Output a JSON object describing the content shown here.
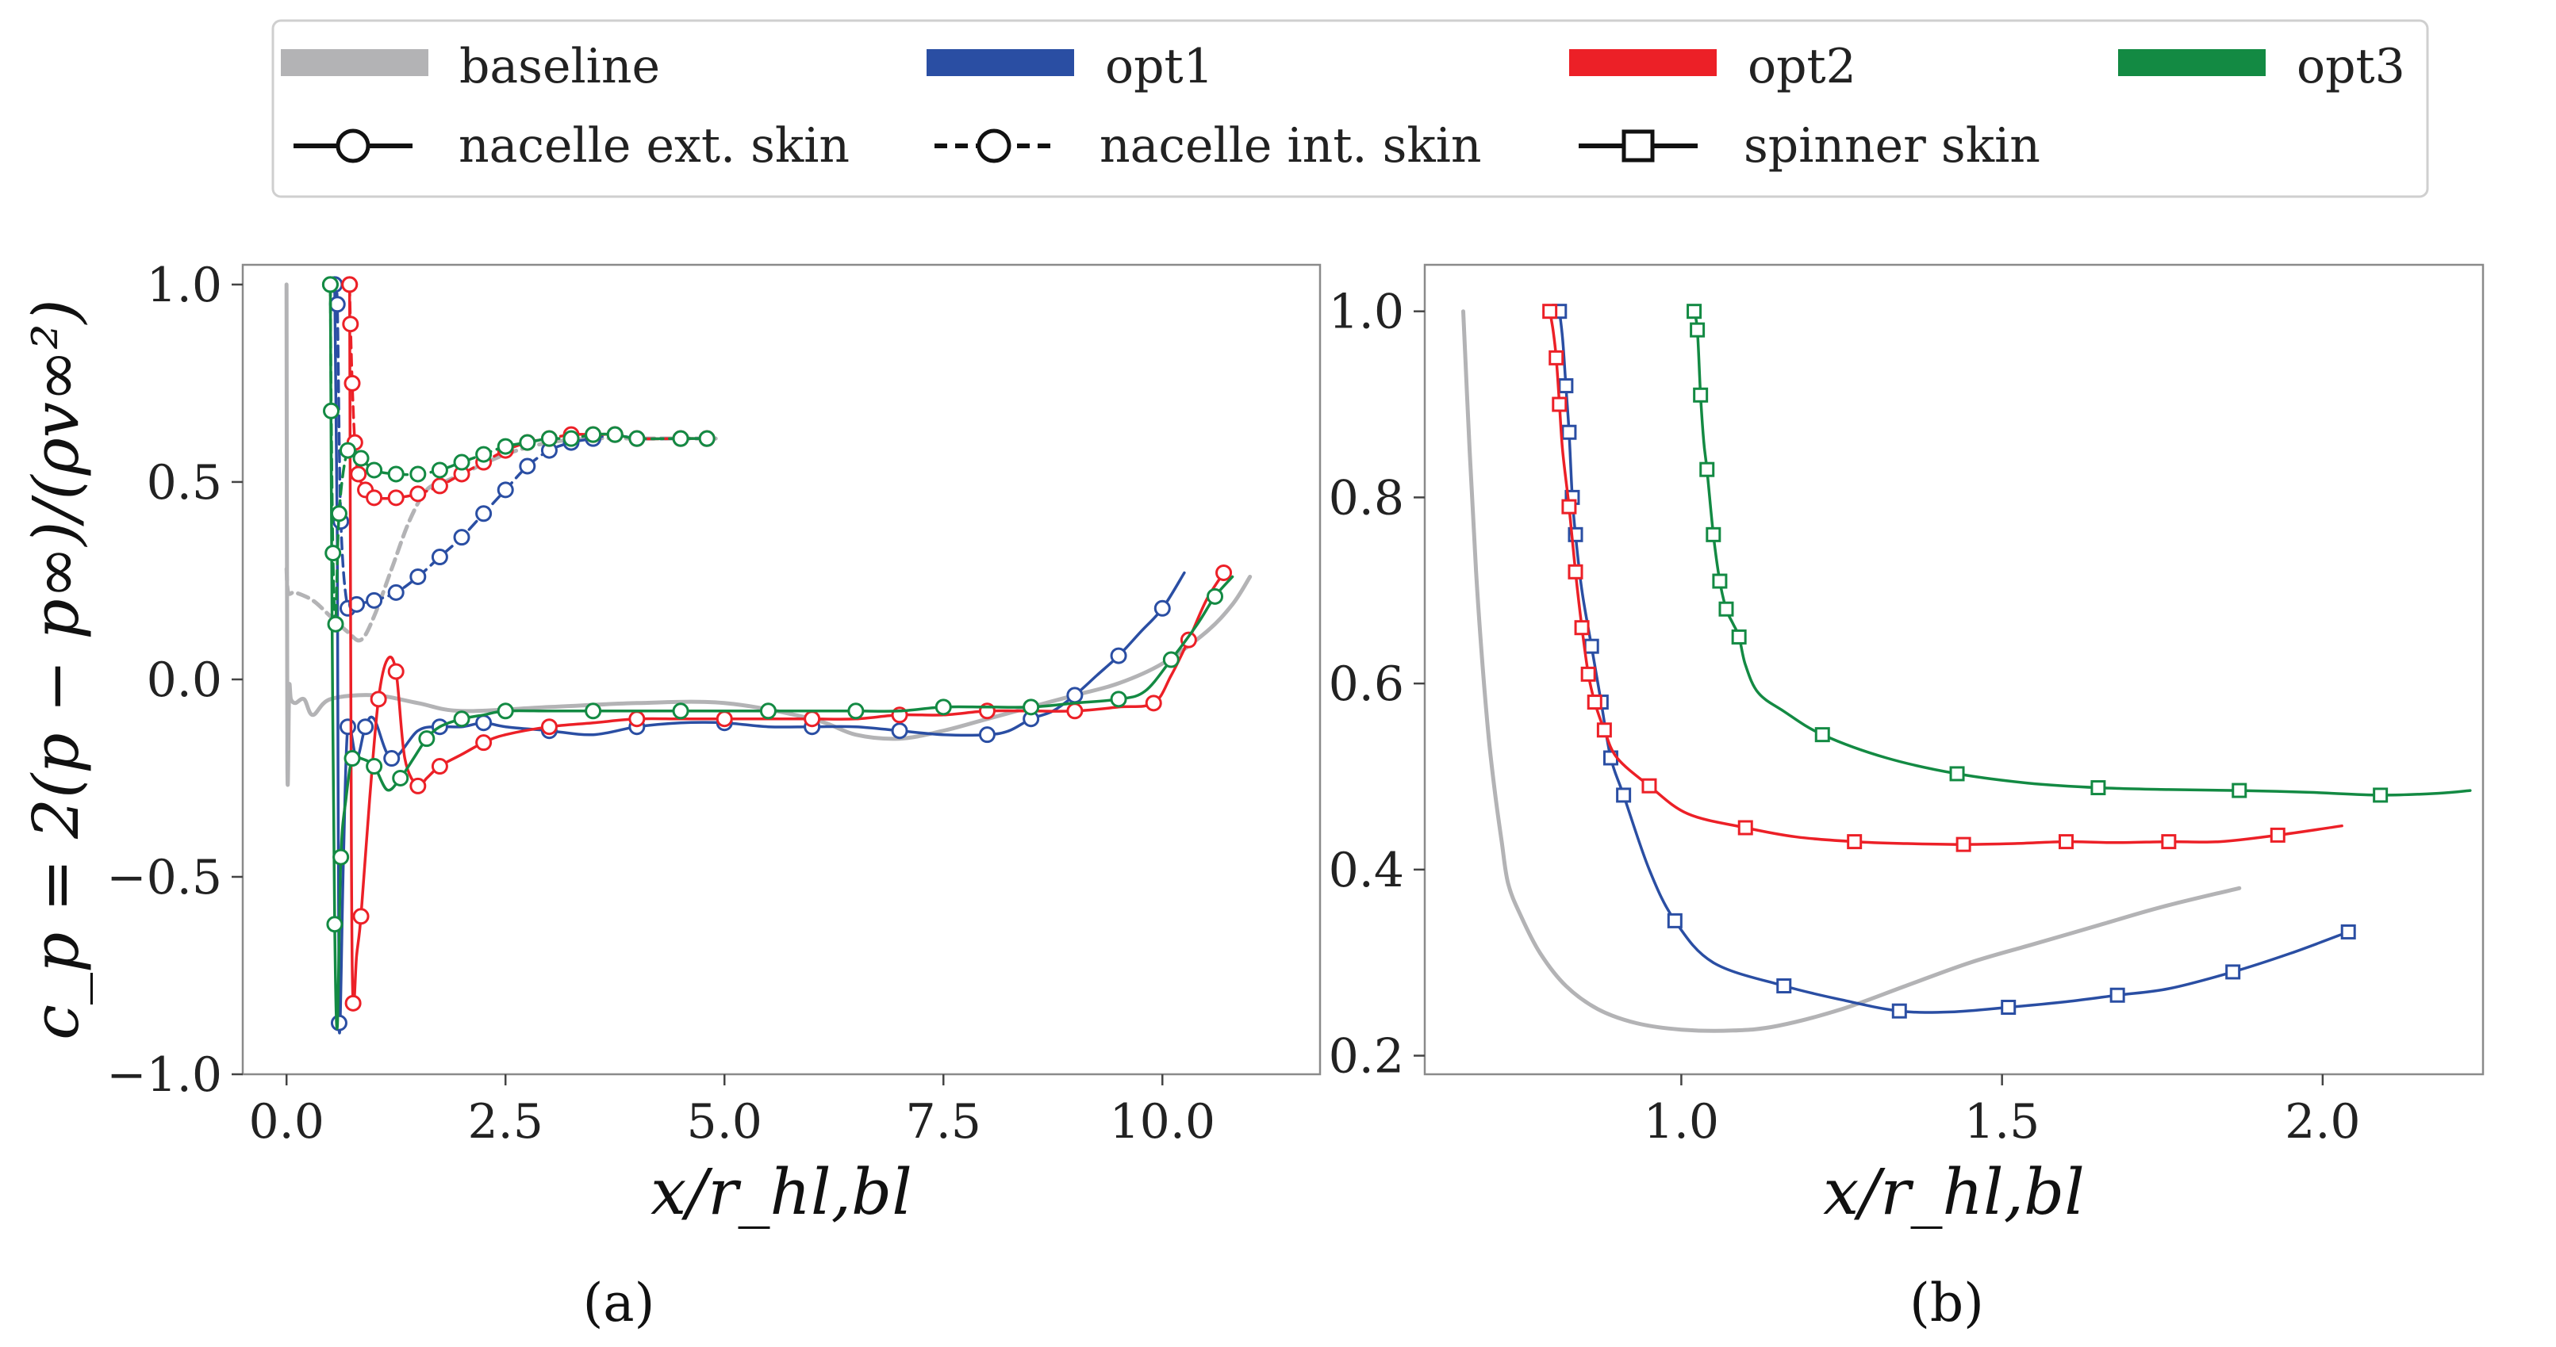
{
  "colors": {
    "baseline": "#b3b3b5",
    "opt1": "#2a4ea3",
    "opt2": "#ec2027",
    "opt3": "#138a43"
  },
  "legend": {
    "series": [
      {
        "key": "baseline",
        "label": "baseline"
      },
      {
        "key": "opt1",
        "label": "opt1"
      },
      {
        "key": "opt2",
        "label": "opt2"
      },
      {
        "key": "opt3",
        "label": "opt3"
      }
    ],
    "markers": [
      {
        "key": "ext",
        "label": "nacelle ext. skin"
      },
      {
        "key": "int",
        "label": "nacelle int. skin"
      },
      {
        "key": "spinner",
        "label": "spinner skin"
      }
    ]
  },
  "panels": {
    "a": {
      "label": "(a)"
    },
    "b": {
      "label": "(b)"
    }
  },
  "chart_data": [
    {
      "id": "a",
      "type": "line",
      "xlabel": "x/r_hl,bl",
      "ylabel": "c_p = 2(p − p∞)/(ρv∞²)",
      "xlim": [
        -0.5,
        11.8
      ],
      "ylim": [
        -1.0,
        1.05
      ],
      "xticks": [
        0.0,
        2.5,
        5.0,
        7.5,
        10.0
      ],
      "yticks": [
        -1.0,
        -0.5,
        0.0,
        0.5,
        1.0
      ],
      "xtick_labels": [
        "0.0",
        "2.5",
        "5.0",
        "7.5",
        "10.0"
      ],
      "ytick_labels": [
        "−1.0",
        "−0.5",
        "0.0",
        "0.5",
        "1.0"
      ],
      "series": [
        {
          "name": "baseline",
          "color": "baseline",
          "style": "solid",
          "marker": "none",
          "x": [
            0.0,
            0.01,
            0.03,
            0.05,
            0.1,
            0.2,
            0.3,
            0.5,
            1.0,
            1.5,
            2.0,
            3.0,
            4.0,
            5.0,
            6.0,
            6.5,
            7.0,
            7.5,
            8.0,
            8.5,
            9.0,
            9.5,
            10.0,
            10.5,
            10.8,
            11.0
          ],
          "y": [
            1.0,
            -0.22,
            -0.02,
            -0.05,
            -0.06,
            -0.05,
            -0.09,
            -0.05,
            -0.04,
            -0.06,
            -0.08,
            -0.07,
            -0.06,
            -0.06,
            -0.1,
            -0.14,
            -0.15,
            -0.13,
            -0.1,
            -0.07,
            -0.04,
            -0.01,
            0.04,
            0.12,
            0.19,
            0.26
          ]
        },
        {
          "name": "baseline",
          "color": "baseline",
          "style": "dashed",
          "marker": "none",
          "x": [
            0.0,
            0.02,
            0.1,
            0.3,
            0.5,
            0.7,
            0.85,
            1.0,
            1.2,
            1.4,
            1.6,
            1.8,
            2.0,
            2.5,
            3.0,
            3.5,
            4.0,
            4.5,
            4.9
          ],
          "y": [
            0.28,
            0.22,
            0.22,
            0.2,
            0.16,
            0.12,
            0.1,
            0.16,
            0.28,
            0.4,
            0.48,
            0.5,
            0.52,
            0.57,
            0.6,
            0.61,
            0.61,
            0.61,
            0.61
          ]
        },
        {
          "name": "opt1",
          "color": "opt1",
          "style": "solid",
          "marker": "circle",
          "x": [
            0.55,
            0.58,
            0.6,
            0.65,
            0.7,
            0.8,
            0.9,
            1.0,
            1.2,
            1.5,
            1.75,
            2.0,
            2.25,
            2.5,
            3.0,
            3.5,
            4.0,
            4.5,
            5.0,
            5.5,
            6.0,
            6.5,
            7.0,
            7.5,
            8.0,
            8.25,
            8.5,
            8.75,
            9.0,
            9.25,
            9.5,
            9.75,
            10.0,
            10.25
          ],
          "y": [
            1.0,
            0.35,
            -0.87,
            -0.45,
            -0.12,
            -0.2,
            -0.12,
            -0.1,
            -0.2,
            -0.13,
            -0.12,
            -0.12,
            -0.11,
            -0.12,
            -0.13,
            -0.14,
            -0.12,
            -0.11,
            -0.11,
            -0.12,
            -0.12,
            -0.12,
            -0.13,
            -0.14,
            -0.14,
            -0.13,
            -0.1,
            -0.08,
            -0.04,
            0.01,
            0.06,
            0.12,
            0.18,
            0.27
          ],
          "markers_every": 2
        },
        {
          "name": "opt1",
          "color": "opt1",
          "style": "dashed",
          "marker": "circle",
          "x": [
            0.55,
            0.58,
            0.62,
            0.7,
            0.8,
            1.0,
            1.25,
            1.5,
            1.75,
            2.0,
            2.25,
            2.5,
            2.75,
            3.0,
            3.25,
            3.5,
            3.75,
            4.0,
            4.5,
            4.8
          ],
          "y": [
            1.0,
            0.95,
            0.4,
            0.18,
            0.19,
            0.2,
            0.22,
            0.26,
            0.31,
            0.36,
            0.42,
            0.48,
            0.54,
            0.58,
            0.6,
            0.61,
            0.62,
            0.61,
            0.61,
            0.61
          ]
        },
        {
          "name": "opt2",
          "color": "opt2",
          "style": "solid",
          "marker": "circle",
          "x": [
            0.72,
            0.74,
            0.76,
            0.8,
            0.85,
            0.95,
            1.05,
            1.15,
            1.25,
            1.35,
            1.5,
            1.6,
            1.75,
            2.0,
            2.25,
            2.5,
            3.0,
            3.5,
            4.0,
            4.5,
            5.0,
            5.5,
            6.0,
            6.5,
            7.0,
            7.5,
            8.0,
            8.5,
            9.0,
            9.5,
            9.9,
            10.1,
            10.3,
            10.5,
            10.7
          ],
          "y": [
            1.0,
            -0.4,
            -0.82,
            -0.7,
            -0.6,
            -0.3,
            -0.05,
            0.05,
            0.02,
            -0.2,
            -0.27,
            -0.25,
            -0.22,
            -0.19,
            -0.16,
            -0.14,
            -0.12,
            -0.11,
            -0.1,
            -0.1,
            -0.1,
            -0.1,
            -0.1,
            -0.1,
            -0.09,
            -0.09,
            -0.08,
            -0.08,
            -0.08,
            -0.07,
            -0.06,
            0.01,
            0.1,
            0.2,
            0.27
          ],
          "markers_every": 2
        },
        {
          "name": "opt2",
          "color": "opt2",
          "style": "dashed",
          "marker": "circle",
          "x": [
            0.72,
            0.73,
            0.75,
            0.78,
            0.82,
            0.9,
            1.0,
            1.25,
            1.5,
            1.75,
            2.0,
            2.25,
            2.5,
            2.75,
            3.0,
            3.25,
            3.5,
            3.75,
            4.0,
            4.5,
            4.8
          ],
          "y": [
            1.0,
            0.9,
            0.75,
            0.6,
            0.52,
            0.48,
            0.46,
            0.46,
            0.47,
            0.49,
            0.52,
            0.55,
            0.58,
            0.6,
            0.61,
            0.62,
            0.62,
            0.62,
            0.61,
            0.61,
            0.61
          ]
        },
        {
          "name": "opt3",
          "color": "opt3",
          "style": "solid",
          "marker": "circle",
          "x": [
            0.5,
            0.52,
            0.55,
            0.58,
            0.62,
            0.68,
            0.75,
            0.85,
            1.0,
            1.15,
            1.3,
            1.45,
            1.6,
            1.75,
            2.0,
            2.25,
            2.5,
            3.0,
            3.5,
            4.0,
            4.5,
            5.0,
            5.5,
            6.0,
            6.5,
            7.0,
            7.5,
            8.0,
            8.5,
            9.0,
            9.5,
            9.8,
            10.1,
            10.4,
            10.6,
            10.8
          ],
          "y": [
            1.0,
            0.15,
            -0.62,
            -0.88,
            -0.45,
            -0.3,
            -0.2,
            -0.2,
            -0.22,
            -0.28,
            -0.25,
            -0.2,
            -0.15,
            -0.12,
            -0.1,
            -0.09,
            -0.08,
            -0.08,
            -0.08,
            -0.08,
            -0.08,
            -0.08,
            -0.08,
            -0.08,
            -0.08,
            -0.08,
            -0.07,
            -0.07,
            -0.07,
            -0.06,
            -0.05,
            -0.03,
            0.05,
            0.14,
            0.21,
            0.26
          ],
          "markers_every": 2
        },
        {
          "name": "opt3",
          "color": "opt3",
          "style": "dashed",
          "marker": "circle",
          "x": [
            0.5,
            0.51,
            0.53,
            0.56,
            0.6,
            0.7,
            0.85,
            1.0,
            1.25,
            1.5,
            1.75,
            2.0,
            2.25,
            2.5,
            2.75,
            3.0,
            3.25,
            3.5,
            3.75,
            4.0,
            4.5,
            4.8
          ],
          "y": [
            1.0,
            0.68,
            0.32,
            0.14,
            0.42,
            0.58,
            0.56,
            0.53,
            0.52,
            0.52,
            0.53,
            0.55,
            0.57,
            0.59,
            0.6,
            0.61,
            0.61,
            0.62,
            0.62,
            0.61,
            0.61,
            0.61
          ]
        }
      ]
    },
    {
      "id": "b",
      "type": "line",
      "xlabel": "x/r_hl,bl",
      "ylabel": "",
      "xlim": [
        0.6,
        2.25
      ],
      "ylim": [
        0.18,
        1.05
      ],
      "xticks": [
        1.0,
        1.5,
        2.0
      ],
      "yticks": [
        0.2,
        0.4,
        0.6,
        0.8,
        1.0
      ],
      "xtick_labels": [
        "1.0",
        "1.5",
        "2.0"
      ],
      "ytick_labels": [
        "0.2",
        "0.4",
        "0.6",
        "0.8",
        "1.0"
      ],
      "series": [
        {
          "name": "baseline",
          "color": "baseline",
          "style": "solid",
          "marker": "none",
          "x": [
            0.66,
            0.67,
            0.68,
            0.69,
            0.7,
            0.71,
            0.72,
            0.73,
            0.75,
            0.78,
            0.82,
            0.87,
            0.93,
            1.0,
            1.08,
            1.15,
            1.25,
            1.35,
            1.45,
            1.55,
            1.65,
            1.75,
            1.87
          ],
          "y": [
            1.0,
            0.85,
            0.72,
            0.62,
            0.54,
            0.48,
            0.43,
            0.385,
            0.35,
            0.31,
            0.275,
            0.25,
            0.235,
            0.228,
            0.227,
            0.232,
            0.25,
            0.275,
            0.3,
            0.32,
            0.34,
            0.36,
            0.38
          ]
        },
        {
          "name": "opt1",
          "color": "opt1",
          "style": "solid",
          "marker": "square",
          "x": [
            0.81,
            0.815,
            0.82,
            0.825,
            0.83,
            0.835,
            0.845,
            0.86,
            0.875,
            0.89,
            0.91,
            0.95,
            0.99,
            1.05,
            1.16,
            1.25,
            1.34,
            1.42,
            1.51,
            1.6,
            1.68,
            1.76,
            1.86,
            1.95,
            2.04
          ],
          "y": [
            1.0,
            0.97,
            0.92,
            0.87,
            0.8,
            0.76,
            0.7,
            0.64,
            0.58,
            0.52,
            0.48,
            0.4,
            0.345,
            0.3,
            0.275,
            0.26,
            0.248,
            0.247,
            0.252,
            0.258,
            0.265,
            0.272,
            0.29,
            0.31,
            0.333
          ],
          "marker_idx": [
            0,
            2,
            3,
            4,
            5,
            7,
            8,
            9,
            10,
            12,
            14,
            16,
            18,
            20,
            22,
            24
          ]
        },
        {
          "name": "opt2",
          "color": "opt2",
          "style": "solid",
          "marker": "square",
          "x": [
            0.795,
            0.8,
            0.805,
            0.81,
            0.815,
            0.825,
            0.835,
            0.845,
            0.855,
            0.865,
            0.88,
            0.9,
            0.95,
            1.01,
            1.1,
            1.18,
            1.27,
            1.35,
            1.44,
            1.52,
            1.6,
            1.68,
            1.76,
            1.84,
            1.93,
            2.03
          ],
          "y": [
            1.0,
            0.98,
            0.95,
            0.9,
            0.85,
            0.79,
            0.72,
            0.66,
            0.61,
            0.58,
            0.55,
            0.52,
            0.49,
            0.46,
            0.445,
            0.435,
            0.43,
            0.428,
            0.427,
            0.428,
            0.43,
            0.429,
            0.43,
            0.43,
            0.437,
            0.447
          ],
          "marker_idx": [
            0,
            2,
            3,
            5,
            6,
            7,
            8,
            9,
            10,
            12,
            14,
            16,
            18,
            20,
            22,
            24
          ]
        },
        {
          "name": "opt3",
          "color": "opt3",
          "style": "solid",
          "marker": "square",
          "x": [
            1.02,
            1.025,
            1.03,
            1.035,
            1.04,
            1.05,
            1.06,
            1.07,
            1.08,
            1.09,
            1.1,
            1.12,
            1.16,
            1.22,
            1.32,
            1.43,
            1.54,
            1.65,
            1.76,
            1.87,
            1.98,
            2.09,
            2.18,
            2.23
          ],
          "y": [
            1.0,
            0.98,
            0.91,
            0.86,
            0.83,
            0.76,
            0.71,
            0.68,
            0.665,
            0.65,
            0.62,
            0.59,
            0.57,
            0.545,
            0.52,
            0.503,
            0.493,
            0.488,
            0.486,
            0.485,
            0.483,
            0.48,
            0.482,
            0.485
          ],
          "marker_idx": [
            0,
            1,
            2,
            4,
            5,
            6,
            7,
            9,
            13,
            15,
            17,
            19,
            21
          ]
        }
      ]
    }
  ]
}
